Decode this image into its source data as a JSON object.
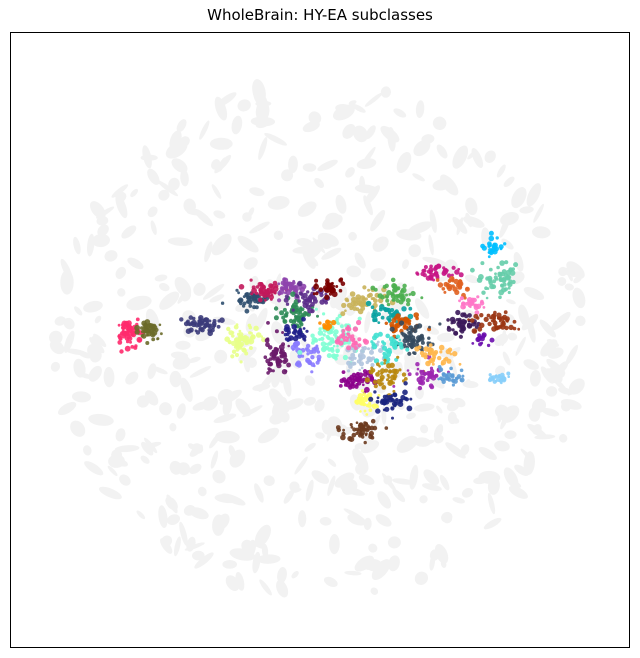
{
  "chart_data": {
    "type": "scatter",
    "title": "WholeBrain: HY-EA subclasses",
    "xlabel": "",
    "ylabel": "",
    "ticks_visible": false,
    "grid": false,
    "legend": "none",
    "background_color": "#f2f2f2",
    "series": [
      {
        "color": "#ff2a6d",
        "center": [
          -0.62,
          0.03
        ],
        "spread": [
          0.018,
          0.02
        ],
        "count": 60
      },
      {
        "color": "#6b6b2a",
        "center": [
          -0.55,
          0.03
        ],
        "spread": [
          0.022,
          0.014
        ],
        "count": 50
      },
      {
        "color": "#3b3b7a",
        "center": [
          -0.38,
          0.05
        ],
        "spread": [
          0.03,
          0.014
        ],
        "count": 55
      },
      {
        "color": "#e8ff8a",
        "center": [
          -0.25,
          0.0
        ],
        "spread": [
          0.03,
          0.022
        ],
        "count": 60
      },
      {
        "color": "#6a1b6a",
        "center": [
          -0.14,
          -0.05
        ],
        "spread": [
          0.018,
          0.03
        ],
        "count": 55
      },
      {
        "color": "#2f4f6f",
        "center": [
          -0.22,
          0.13
        ],
        "spread": [
          0.03,
          0.014
        ],
        "count": 45
      },
      {
        "color": "#c2185b",
        "center": [
          -0.17,
          0.16
        ],
        "spread": [
          0.025,
          0.014
        ],
        "count": 45
      },
      {
        "color": "#8e44ad",
        "center": [
          -0.1,
          0.17
        ],
        "spread": [
          0.025,
          0.014
        ],
        "count": 40
      },
      {
        "color": "#2e8b57",
        "center": [
          -0.07,
          0.08
        ],
        "spread": [
          0.03,
          0.025
        ],
        "count": 60
      },
      {
        "color": "#5b2c8a",
        "center": [
          -0.03,
          0.14
        ],
        "spread": [
          0.03,
          0.018
        ],
        "count": 45
      },
      {
        "color": "#7a0000",
        "center": [
          0.03,
          0.17
        ],
        "spread": [
          0.02,
          0.014
        ],
        "count": 40
      },
      {
        "color": "#1e1e8a",
        "center": [
          -0.08,
          0.02
        ],
        "spread": [
          0.02,
          0.014
        ],
        "count": 30
      },
      {
        "color": "#8a7bff",
        "center": [
          -0.04,
          -0.05
        ],
        "spread": [
          0.025,
          0.02
        ],
        "count": 40
      },
      {
        "color": "#7fffd4",
        "center": [
          0.04,
          0.0
        ],
        "spread": [
          0.035,
          0.035
        ],
        "count": 80
      },
      {
        "color": "#c9b35a",
        "center": [
          0.14,
          0.12
        ],
        "spread": [
          0.03,
          0.025
        ],
        "count": 50
      },
      {
        "color": "#ff8c00",
        "center": [
          0.02,
          0.05
        ],
        "spread": [
          0.012,
          0.012
        ],
        "count": 15
      },
      {
        "color": "#b0c4de",
        "center": [
          0.14,
          -0.05
        ],
        "spread": [
          0.03,
          0.025
        ],
        "count": 45
      },
      {
        "color": "#ff69b4",
        "center": [
          0.1,
          0.0
        ],
        "spread": [
          0.025,
          0.02
        ],
        "count": 35
      },
      {
        "color": "#4caf50",
        "center": [
          0.25,
          0.15
        ],
        "spread": [
          0.03,
          0.018
        ],
        "count": 45
      },
      {
        "color": "#0aa2a2",
        "center": [
          0.22,
          0.08
        ],
        "spread": [
          0.03,
          0.018
        ],
        "count": 40
      },
      {
        "color": "#d35400",
        "center": [
          0.27,
          0.05
        ],
        "spread": [
          0.03,
          0.018
        ],
        "count": 40
      },
      {
        "color": "#34495e",
        "center": [
          0.3,
          0.0
        ],
        "spread": [
          0.035,
          0.03
        ],
        "count": 60
      },
      {
        "color": "#40e0d0",
        "center": [
          0.22,
          -0.02
        ],
        "spread": [
          0.025,
          0.02
        ],
        "count": 35
      },
      {
        "color": "#8b008b",
        "center": [
          0.12,
          -0.13
        ],
        "spread": [
          0.025,
          0.02
        ],
        "count": 45
      },
      {
        "color": "#b8860b",
        "center": [
          0.22,
          -0.12
        ],
        "spread": [
          0.03,
          0.022
        ],
        "count": 45
      },
      {
        "color": "#ffff66",
        "center": [
          0.14,
          -0.2
        ],
        "spread": [
          0.02,
          0.02
        ],
        "count": 40
      },
      {
        "color": "#1a237e",
        "center": [
          0.24,
          -0.2
        ],
        "spread": [
          0.03,
          0.018
        ],
        "count": 40
      },
      {
        "color": "#6b3a1e",
        "center": [
          0.14,
          -0.29
        ],
        "spread": [
          0.035,
          0.02
        ],
        "count": 50
      },
      {
        "color": "#9c27b0",
        "center": [
          0.34,
          -0.12
        ],
        "spread": [
          0.03,
          0.018
        ],
        "count": 40
      },
      {
        "color": "#ffb74d",
        "center": [
          0.38,
          -0.05
        ],
        "spread": [
          0.03,
          0.014
        ],
        "count": 35
      },
      {
        "color": "#5b9bd5",
        "center": [
          0.42,
          -0.12
        ],
        "spread": [
          0.025,
          0.014
        ],
        "count": 30
      },
      {
        "color": "#3b1a5a",
        "center": [
          0.45,
          0.05
        ],
        "spread": [
          0.03,
          0.018
        ],
        "count": 40
      },
      {
        "color": "#c71585",
        "center": [
          0.38,
          0.22
        ],
        "spread": [
          0.035,
          0.014
        ],
        "count": 40
      },
      {
        "color": "#e06020",
        "center": [
          0.44,
          0.18
        ],
        "spread": [
          0.025,
          0.014
        ],
        "count": 30
      },
      {
        "color": "#ff77c8",
        "center": [
          0.48,
          0.12
        ],
        "spread": [
          0.02,
          0.012
        ],
        "count": 25
      },
      {
        "color": "#66cdaa",
        "center": [
          0.58,
          0.2
        ],
        "spread": [
          0.03,
          0.03
        ],
        "count": 55
      },
      {
        "color": "#00bfff",
        "center": [
          0.56,
          0.3
        ],
        "spread": [
          0.015,
          0.018
        ],
        "count": 25
      },
      {
        "color": "#9a3412",
        "center": [
          0.56,
          0.06
        ],
        "spread": [
          0.035,
          0.018
        ],
        "count": 45
      },
      {
        "color": "#87cefa",
        "center": [
          0.58,
          -0.12
        ],
        "spread": [
          0.02,
          0.012
        ],
        "count": 20
      },
      {
        "color": "#6a0dad",
        "center": [
          0.52,
          0.0
        ],
        "spread": [
          0.015,
          0.01
        ],
        "count": 15
      }
    ]
  }
}
